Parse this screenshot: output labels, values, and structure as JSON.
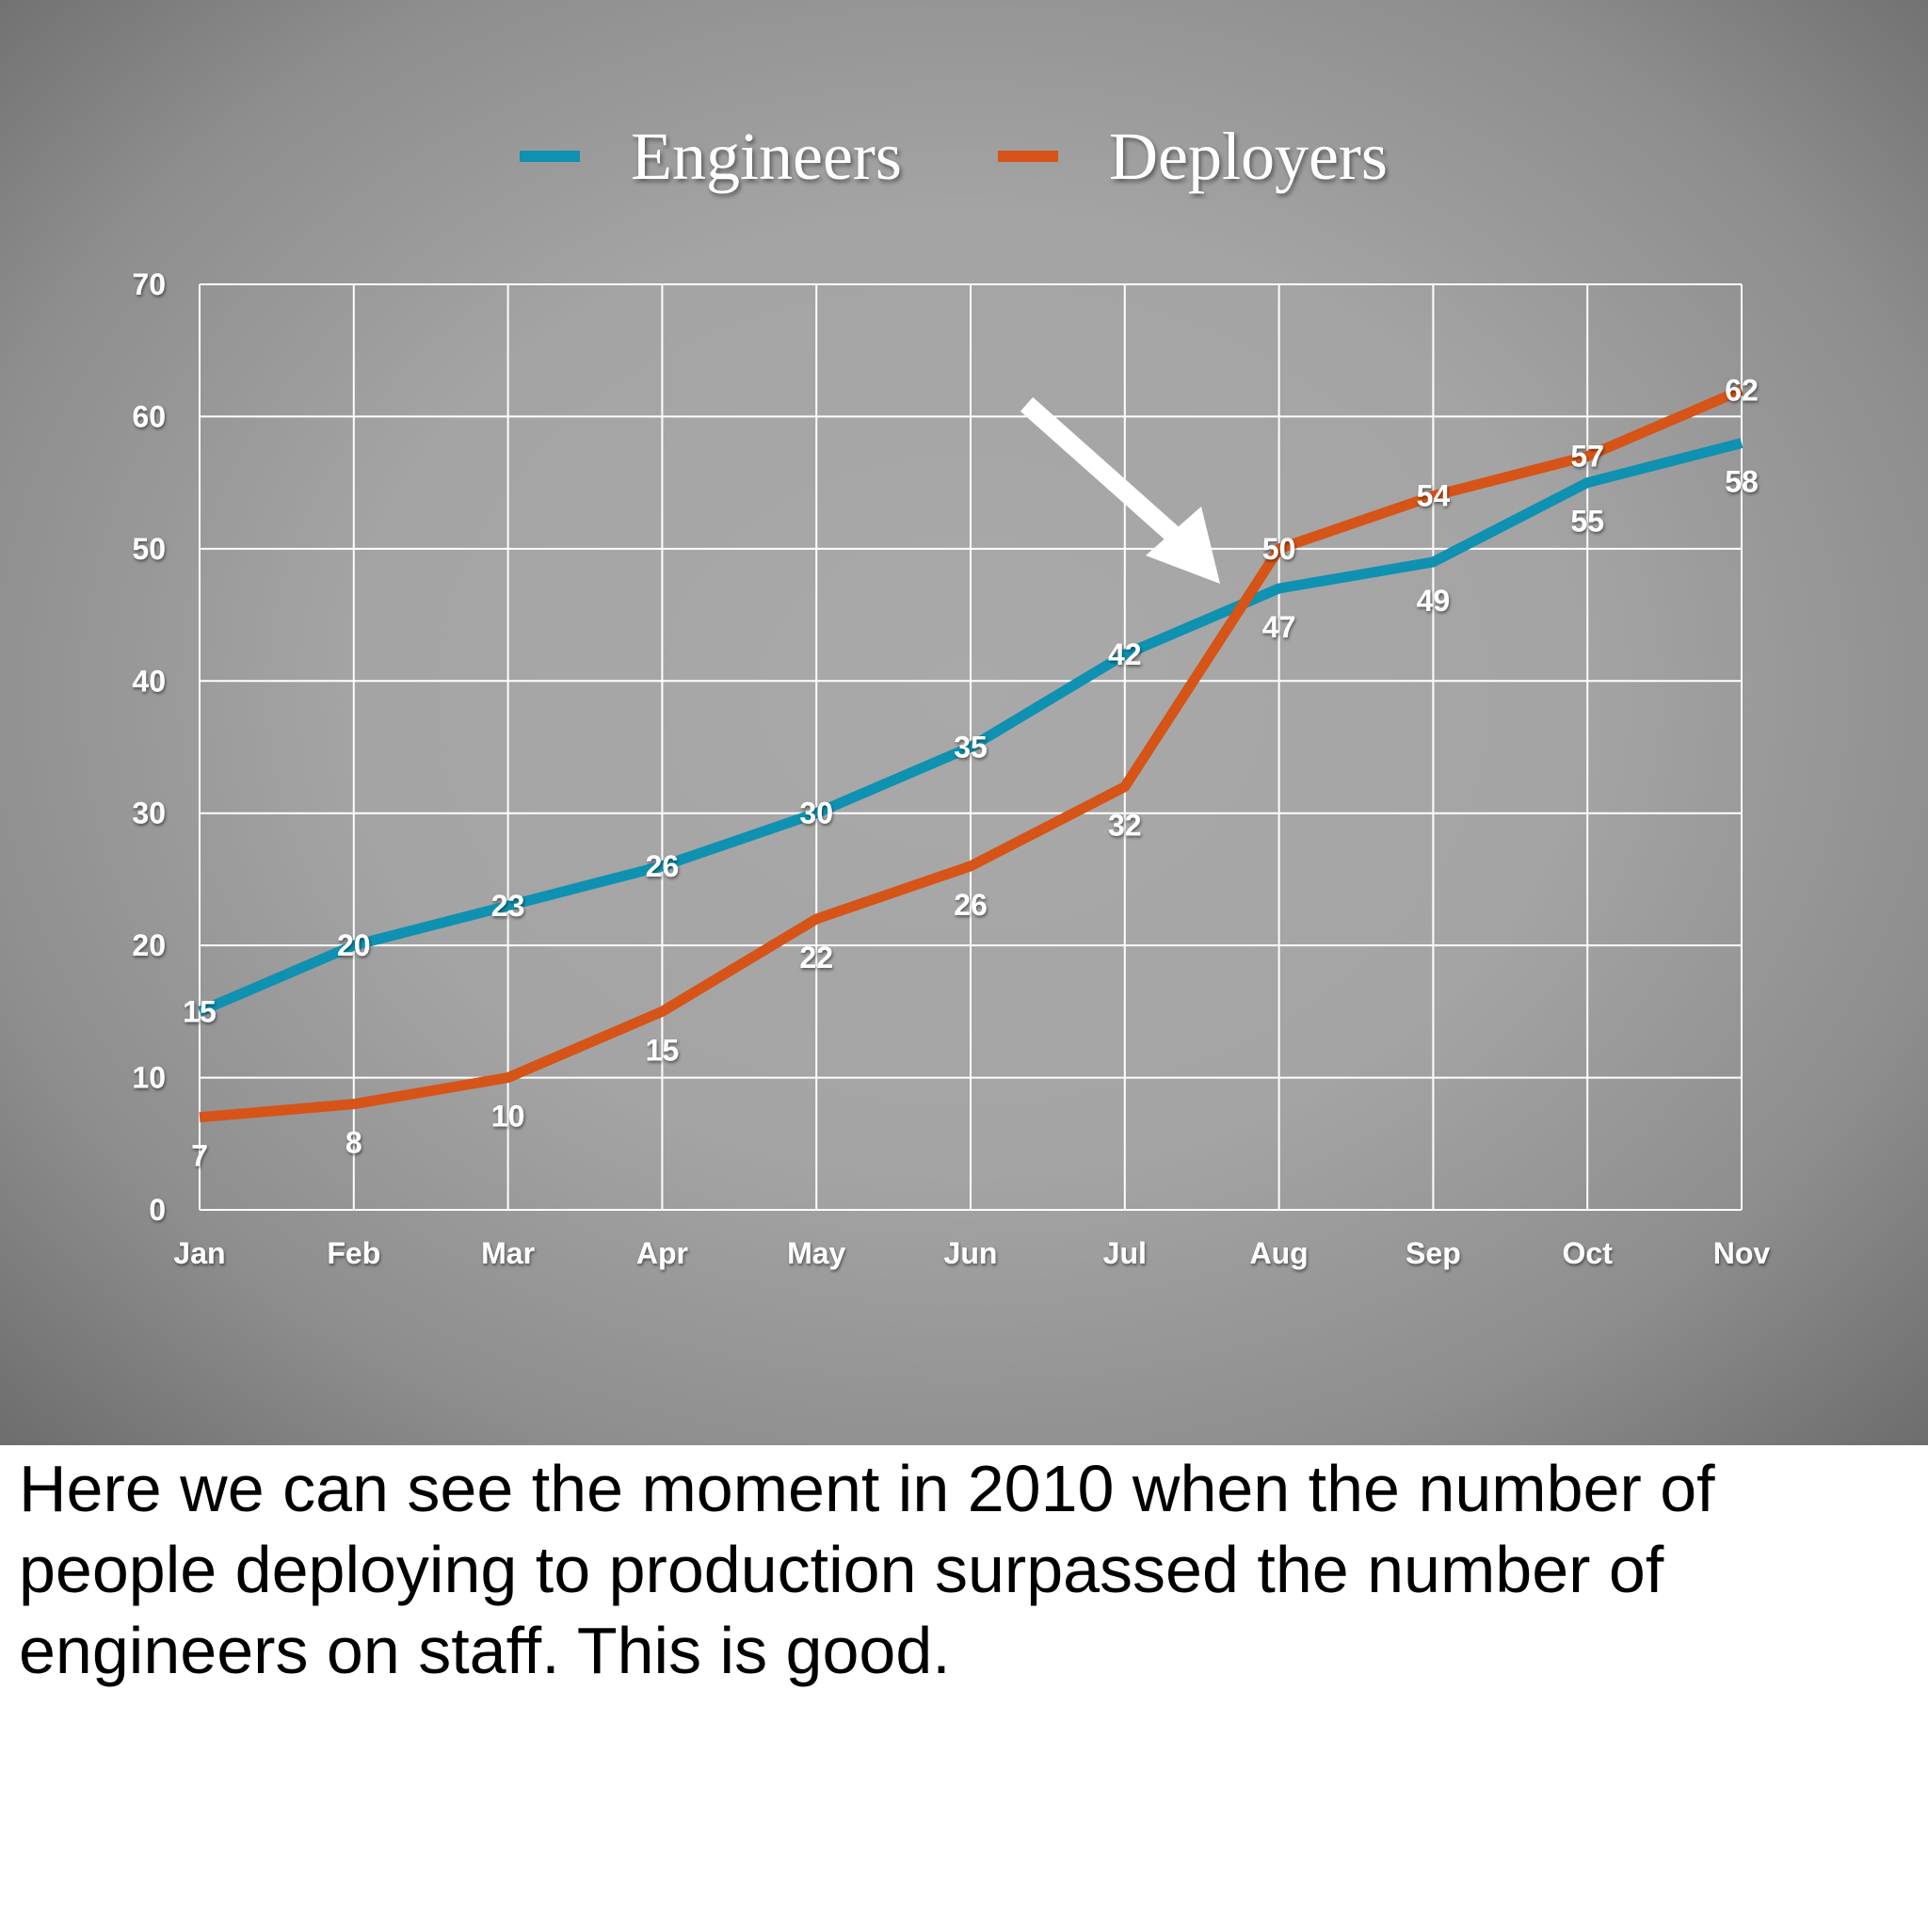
{
  "chart_data": {
    "type": "line",
    "categories": [
      "Jan",
      "Feb",
      "Mar",
      "Apr",
      "May",
      "Jun",
      "Jul",
      "Aug",
      "Sep",
      "Oct",
      "Nov"
    ],
    "series": [
      {
        "name": "Engineers",
        "color": "#0f91b1",
        "values": [
          15,
          20,
          23,
          26,
          30,
          35,
          42,
          47,
          49,
          55,
          58
        ]
      },
      {
        "name": "Deployers",
        "color": "#d65417",
        "values": [
          7,
          8,
          10,
          15,
          22,
          26,
          32,
          50,
          54,
          57,
          62
        ]
      }
    ],
    "ylim": [
      0,
      70
    ],
    "yticks": [
      "0",
      "10",
      "20",
      "30",
      "40",
      "50",
      "60",
      "70"
    ],
    "grid": true,
    "legend": "top-center",
    "annotation": "white arrow pointing to the crossover between Jul and Aug"
  },
  "caption": "Here we can see the moment in 2010 when the number of people deploying to production surpassed the number of engineers on staff. This is good."
}
